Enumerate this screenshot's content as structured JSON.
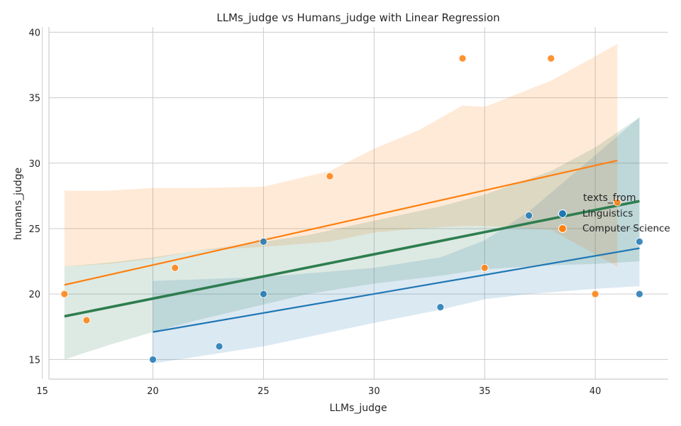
{
  "chart_data": {
    "type": "scatter",
    "title": "LLMs_judge vs Humans_judge with Linear Regression",
    "xlabel": "LLMs_judge",
    "ylabel": "humans_judge",
    "xlim": [
      15.3,
      43.3
    ],
    "ylim": [
      13.5,
      40.4
    ],
    "xticks": [
      15,
      20,
      25,
      30,
      35,
      40
    ],
    "yticks": [
      15,
      20,
      25,
      30,
      35,
      40
    ],
    "grid": true,
    "legend": {
      "title": "texts_from",
      "placement": "right",
      "entries": [
        "Linguistics",
        "Computer Science"
      ]
    },
    "colors": {
      "Linguistics": "#1f77b4",
      "Computer Science": "#ff7f0e",
      "overall": "#2e7d4f",
      "grid": "#cccccc",
      "axis": "#cccccc"
    },
    "series": [
      {
        "name": "Linguistics",
        "points": [
          [
            20,
            15
          ],
          [
            23,
            16
          ],
          [
            25,
            24
          ],
          [
            25,
            20
          ],
          [
            33,
            19
          ],
          [
            37,
            26
          ],
          [
            42,
            24
          ],
          [
            42,
            20
          ]
        ],
        "fit": {
          "x": [
            20,
            42
          ],
          "y": [
            17.1,
            23.5
          ]
        },
        "band": {
          "x": [
            20,
            25,
            30,
            33,
            35,
            37,
            40,
            42
          ],
          "upper": [
            21.0,
            21.3,
            22.0,
            22.8,
            24.1,
            26.3,
            30.6,
            33.5
          ],
          "lower": [
            14.7,
            16.0,
            17.8,
            18.8,
            19.6,
            20.0,
            20.4,
            20.6
          ]
        }
      },
      {
        "name": "Computer Science",
        "points": [
          [
            16,
            20
          ],
          [
            17,
            18
          ],
          [
            21,
            22
          ],
          [
            28,
            29
          ],
          [
            34,
            38
          ],
          [
            35,
            22
          ],
          [
            38,
            38
          ],
          [
            40,
            20
          ],
          [
            41,
            27
          ]
        ],
        "fit": {
          "x": [
            16,
            41
          ],
          "y": [
            20.7,
            30.2
          ]
        },
        "band": {
          "x": [
            16,
            18,
            20,
            22,
            25,
            28,
            30,
            32,
            34,
            35,
            38,
            41
          ],
          "upper": [
            27.9,
            27.9,
            28.1,
            28.1,
            28.2,
            29.4,
            31.1,
            32.5,
            34.4,
            34.3,
            36.3,
            39.1
          ],
          "lower": [
            22.1,
            22.3,
            22.7,
            23.3,
            23.6,
            24.0,
            24.7,
            25.0,
            25.2,
            25.2,
            24.9,
            22.1
          ]
        }
      },
      {
        "name": "",
        "fit": {
          "x": [
            16,
            42
          ],
          "y": [
            18.3,
            27.1
          ]
        },
        "band": {
          "x": [
            16,
            18,
            20,
            22,
            25,
            27,
            30,
            33,
            35,
            38,
            40,
            42
          ],
          "upper": [
            22.1,
            22.4,
            22.8,
            23.3,
            24.0,
            24.5,
            25.6,
            26.7,
            27.6,
            29.4,
            31.2,
            33.5
          ],
          "lower": [
            15.0,
            16.1,
            17.1,
            18.0,
            19.2,
            20.0,
            20.8,
            21.4,
            21.9,
            22.2,
            22.3,
            22.5
          ]
        }
      }
    ]
  }
}
